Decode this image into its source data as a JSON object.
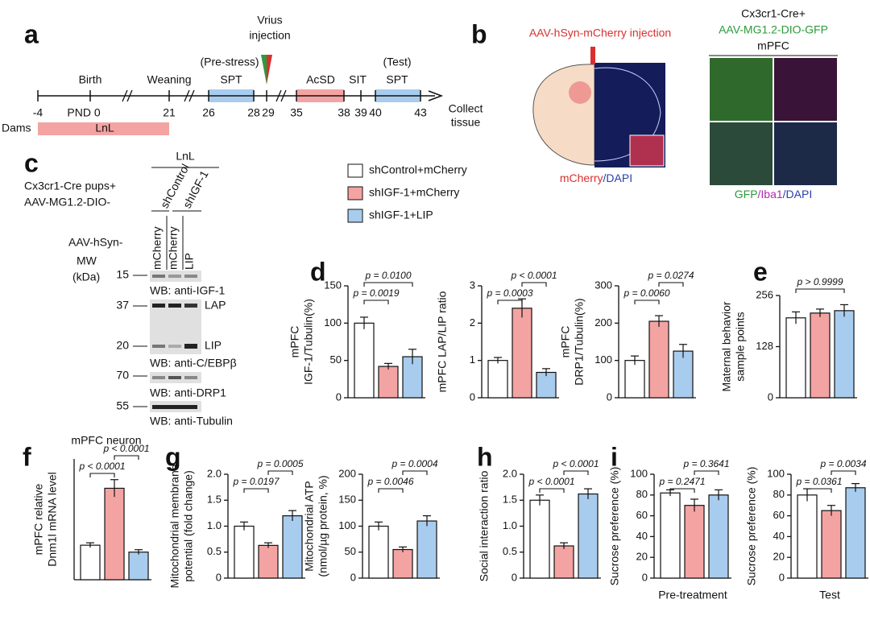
{
  "panel_labels": [
    "a",
    "b",
    "c",
    "d",
    "e",
    "f",
    "g",
    "h",
    "i"
  ],
  "timeline": {
    "injection": [
      "Vrius",
      "injection"
    ],
    "events": [
      "Birth",
      "Weaning",
      "(Pre-stress)",
      "SPT",
      "AcSD",
      "SIT",
      "(Test)",
      "SPT"
    ],
    "days": [
      "-4",
      "PND 0",
      "21",
      "26",
      "28",
      "29",
      "35",
      "38",
      "39",
      "40",
      "43"
    ],
    "end": [
      "Collect",
      "tissue"
    ],
    "dams": "Dams",
    "lnl": "LnL"
  },
  "imaging": {
    "injection": "AAV-hSyn-mCherry injection",
    "stain": [
      "mCherry",
      "/DAPI"
    ],
    "line1": "Cx3cr1-Cre+",
    "line2": "AAV-MG1.2-DIO-GFP",
    "region": "mPFC",
    "stain2": [
      "GFP",
      "/Iba1",
      "/DAPI"
    ]
  },
  "blot": {
    "group": "LnL",
    "mice": [
      "Cx3cr1-Cre pups+",
      "AAV-MG1.2-DIO-"
    ],
    "shrna": [
      "shControl",
      "shIGF-1"
    ],
    "vector": "AAV-hSyn-",
    "lanes": [
      "mCherry",
      "mCherry",
      "LIP"
    ],
    "mw": [
      "MW",
      "(kDa)"
    ],
    "markers": [
      "15",
      "37",
      "20",
      "70",
      "55"
    ],
    "labels": [
      "WB: anti-IGF-1",
      "LAP",
      "LIP",
      "WB: anti-C/EBPβ",
      "WB: anti-DRP1",
      "WB: anti-Tubulin"
    ]
  },
  "legend": [
    {
      "name": "shControl+mCherry",
      "color": "#ffffff"
    },
    {
      "name": "shIGF-1+mCherry",
      "color": "#f4a3a3"
    },
    {
      "name": "shIGF-1+LIP",
      "color": "#a8ccee"
    }
  ],
  "chart_data": [
    {
      "type": "bar",
      "ylabel": [
        "mPFC",
        "IGF-1/Tubulin(%)"
      ],
      "values": [
        100,
        42,
        55
      ],
      "errors": [
        8,
        4,
        10
      ],
      "ylim": [
        0,
        150
      ],
      "yticks": [
        0,
        50,
        100,
        150
      ],
      "annotations": [
        "p = 0.0019",
        "p = 0.0100"
      ]
    },
    {
      "type": "bar",
      "ylabel": [
        "mPFC LAP/LIP ratio"
      ],
      "values": [
        1.0,
        2.4,
        0.68
      ],
      "errors": [
        0.08,
        0.25,
        0.1
      ],
      "ylim": [
        0,
        3
      ],
      "yticks": [
        0,
        1,
        2,
        3
      ],
      "annotations": [
        "p = 0.0003",
        "p < 0.0001"
      ]
    },
    {
      "type": "bar",
      "ylabel": [
        "mPFC",
        "DRP1/Tubulin(%)"
      ],
      "values": [
        100,
        205,
        125
      ],
      "errors": [
        12,
        15,
        18
      ],
      "ylim": [
        0,
        300
      ],
      "yticks": [
        0,
        100,
        200,
        300
      ],
      "annotations": [
        "p = 0.0060",
        "p = 0.0274"
      ]
    },
    {
      "type": "bar",
      "ylabel": [
        "Maternal behavior",
        "sample points"
      ],
      "values": [
        200,
        212,
        218
      ],
      "errors": [
        15,
        10,
        15
      ],
      "ylim": [
        0,
        256
      ],
      "yticks": [
        0,
        128,
        256
      ],
      "annotations": [
        "p > 0.9999"
      ]
    },
    {
      "type": "bar",
      "title": "mPFC neuron",
      "ylabel": [
        "mPFC relative",
        "Dnm1l mRNA level"
      ],
      "values": [
        1.0,
        2.65,
        0.8
      ],
      "errors": [
        0.07,
        0.25,
        0.07
      ],
      "ylim": [
        0,
        3.5
      ],
      "annotations": [
        "p < 0.0001",
        "p < 0.0001"
      ]
    },
    {
      "type": "bar",
      "ylabel": [
        "Mitochondrial membrane",
        "potential (fold change)"
      ],
      "values": [
        1.0,
        0.63,
        1.2
      ],
      "errors": [
        0.08,
        0.05,
        0.1
      ],
      "ylim": [
        0,
        2
      ],
      "yticks": [
        0,
        0.5,
        {
          "value": 1,
          "label": "1.0"
        },
        1.5,
        {
          "value": 2,
          "label": "2.0"
        }
      ],
      "annotations": [
        "p = 0.0197",
        "p = 0.0005"
      ]
    },
    {
      "type": "bar",
      "ylabel": [
        "Mitochondrial ATP",
        "(nmol/µg protein, %)"
      ],
      "values": [
        100,
        55,
        110
      ],
      "errors": [
        8,
        5,
        10
      ],
      "ylim": [
        0,
        200
      ],
      "yticks": [
        0,
        50,
        100,
        150,
        200
      ],
      "annotations": [
        "p = 0.0046",
        "p = 0.0004"
      ]
    },
    {
      "type": "bar",
      "ylabel": [
        "Social interaction ratio"
      ],
      "values": [
        1.5,
        0.62,
        1.62
      ],
      "errors": [
        0.1,
        0.06,
        0.1
      ],
      "ylim": [
        0,
        2
      ],
      "yticks": [
        0,
        0.5,
        {
          "value": 1,
          "label": "1.0"
        },
        1.5,
        {
          "value": 2,
          "label": "2.0"
        }
      ],
      "annotations": [
        "p < 0.0001",
        "p < 0.0001"
      ]
    },
    {
      "type": "bar",
      "ylabel": [
        "Sucrose preference (%)"
      ],
      "xlabel": "Pre-treatment",
      "values": [
        82,
        70,
        80
      ],
      "errors": [
        3,
        6,
        5
      ],
      "ylim": [
        0,
        100
      ],
      "yticks": [
        0,
        20,
        40,
        60,
        80,
        100
      ],
      "annotations": [
        "p = 0.2471",
        "p = 0.3641"
      ]
    },
    {
      "type": "bar",
      "ylabel": [
        "Sucrose preference (%)"
      ],
      "xlabel": "Test",
      "values": [
        80,
        65,
        87
      ],
      "errors": [
        6,
        5,
        4
      ],
      "ylim": [
        0,
        100
      ],
      "yticks": [
        0,
        20,
        40,
        60,
        80,
        100
      ],
      "annotations": [
        "p = 0.0361",
        "p = 0.0034"
      ]
    }
  ]
}
